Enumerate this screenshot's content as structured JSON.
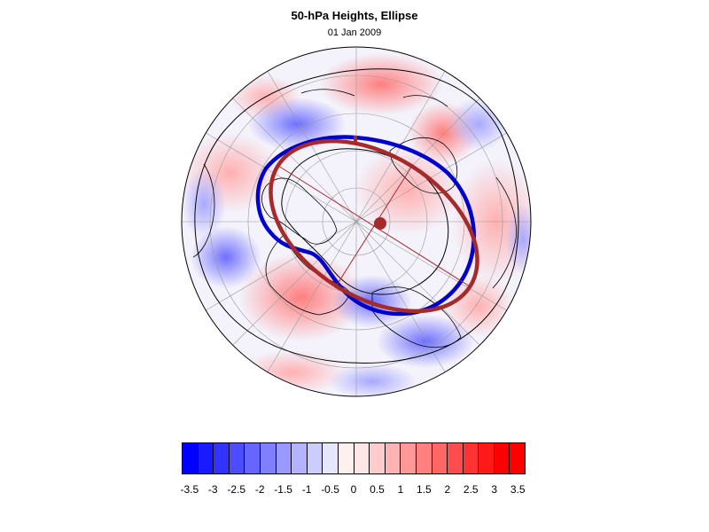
{
  "title": "50-hPa Heights, Ellipse",
  "subtitle": "01 Jan 2009",
  "colorbar": {
    "colors": [
      "#0000ff",
      "#1a1aff",
      "#3333ff",
      "#4d4dff",
      "#6666ff",
      "#8080ff",
      "#9999ff",
      "#b3b3ff",
      "#ccccff",
      "#e6e6ff",
      "#fff0f0",
      "#ffe6e6",
      "#ffcccc",
      "#ffb3b3",
      "#ff9999",
      "#ff8080",
      "#ff6666",
      "#ff4d4d",
      "#ff3333",
      "#ff1a1a",
      "#ff0000",
      "#ff0000"
    ],
    "tick_labels": [
      "-3.5",
      "-3",
      "-2.5",
      "-2",
      "-1.5",
      "-1",
      "-0.5",
      "0",
      "0.5",
      "1",
      "1.5",
      "2",
      "2.5",
      "3",
      "3.5"
    ]
  },
  "map": {
    "projection": "polar stereographic, north pole",
    "contours": [
      {
        "name": "height contour",
        "color": "#000000"
      },
      {
        "name": "ellipse fit",
        "color": "#a52a2a"
      },
      {
        "name": "vortex edge",
        "color": "#0000cc"
      }
    ]
  }
}
